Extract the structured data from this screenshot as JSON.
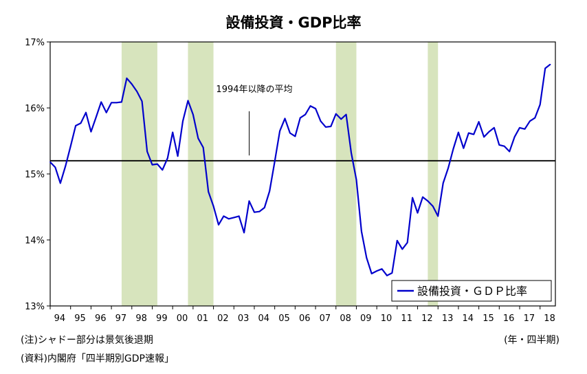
{
  "chart_data": {
    "type": "line",
    "title": "設備投資・GDP比率",
    "xlabel": "",
    "ylabel": "",
    "x_unit": "(年・四半期)",
    "xlim": [
      1994.0,
      2018.75
    ],
    "ylim": [
      13,
      17
    ],
    "yticks": [
      "13%",
      "14%",
      "15%",
      "16%",
      "17%"
    ],
    "xticks": [
      "94",
      "95",
      "96",
      "97",
      "98",
      "99",
      "00",
      "01",
      "02",
      "03",
      "04",
      "05",
      "06",
      "07",
      "08",
      "09",
      "10",
      "11",
      "12",
      "13",
      "14",
      "15",
      "16",
      "17",
      "18"
    ],
    "grid": false,
    "legend": {
      "position": "bottom-right",
      "label": "設備投資・ＧＤＰ比率"
    },
    "reference_line": {
      "label": "1994年以降の平均",
      "value": 15.2
    },
    "recessions": [
      [
        1997.5,
        1999.25
      ],
      [
        2000.75,
        2002.0
      ],
      [
        2008.0,
        2009.0
      ],
      [
        2012.5,
        2013.0
      ]
    ],
    "series": [
      {
        "name": "設備投資・ＧＤＰ比率",
        "x_start": 1994.0,
        "step": 0.25,
        "values": [
          15.18,
          15.1,
          14.86,
          15.12,
          15.42,
          15.73,
          15.77,
          15.93,
          15.64,
          15.86,
          16.09,
          15.93,
          16.08,
          16.08,
          16.09,
          16.45,
          16.36,
          16.25,
          16.1,
          15.34,
          15.14,
          15.15,
          15.06,
          15.24,
          15.63,
          15.27,
          15.8,
          16.11,
          15.9,
          15.54,
          15.4,
          14.73,
          14.51,
          14.23,
          14.36,
          14.32,
          14.34,
          14.36,
          14.11,
          14.59,
          14.42,
          14.43,
          14.49,
          14.74,
          15.19,
          15.65,
          15.84,
          15.62,
          15.57,
          15.85,
          15.9,
          16.03,
          15.99,
          15.8,
          15.71,
          15.72,
          15.91,
          15.83,
          15.9,
          15.32,
          14.91,
          14.13,
          13.73,
          13.49,
          13.53,
          13.56,
          13.46,
          13.5,
          13.99,
          13.86,
          13.96,
          14.64,
          14.41,
          14.65,
          14.59,
          14.51,
          14.36,
          14.86,
          15.09,
          15.38,
          15.63,
          15.39,
          15.62,
          15.6,
          15.79,
          15.56,
          15.64,
          15.7,
          15.44,
          15.42,
          15.34,
          15.56,
          15.7,
          15.68,
          15.8,
          15.85,
          16.05,
          16.6,
          16.66
        ]
      }
    ]
  },
  "notes": {
    "note1": "(注)シャドー部分は景気後退期",
    "note2": "(資料)内閣府「四半期別GDP速報」"
  }
}
